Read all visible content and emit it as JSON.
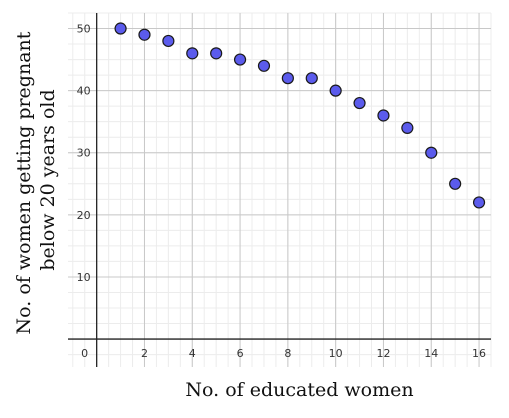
{
  "chart_data": {
    "type": "scatter",
    "xlabel": "No. of educated women",
    "ylabel_lines": [
      "No. of women getting pregnant",
      "below 20 years old"
    ],
    "xlim": [
      -1.2,
      16.5
    ],
    "ylim": [
      -4.5,
      52.5
    ],
    "x_ticks": [
      0,
      2,
      4,
      6,
      8,
      10,
      12,
      14,
      16
    ],
    "y_ticks": [
      10,
      20,
      30,
      40,
      50
    ],
    "minor_step_x": 0.5,
    "minor_step_y": 2.5,
    "grid": true,
    "legend": "none",
    "series": [
      {
        "x": [
          1,
          2,
          3,
          4,
          5,
          6,
          7,
          8,
          9,
          10,
          11,
          12,
          13,
          14,
          15,
          16
        ],
        "y": [
          50,
          49,
          48,
          46,
          46,
          45,
          44,
          42,
          42,
          40,
          38,
          36,
          34,
          30,
          25,
          22
        ]
      }
    ],
    "colors": {
      "marker_fill": "#5b5bec",
      "marker_stroke": "#1a1a1a",
      "major_grid": "#c8c8c8",
      "minor_grid": "#ececec",
      "axis": "#222222"
    }
  }
}
